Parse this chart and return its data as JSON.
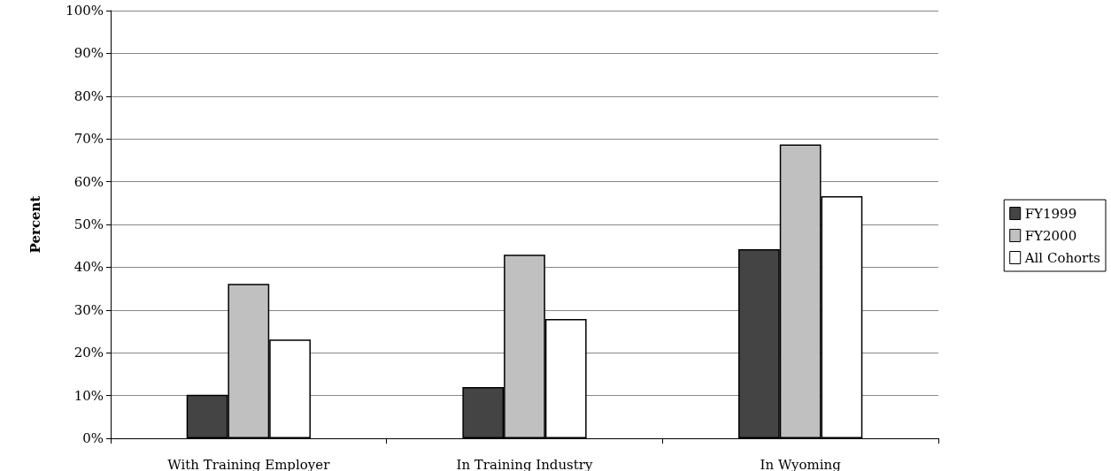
{
  "chart_data": {
    "type": "bar",
    "ylabel": "Percent",
    "categories": [
      "With Training Employer",
      "In Training Industry",
      "In Wyoming"
    ],
    "series": [
      {
        "name": "FY1999",
        "color": "#444444",
        "values": [
          10.2,
          12.0,
          44.2
        ]
      },
      {
        "name": "FY2000",
        "color": "#c0c0c0",
        "values": [
          36.1,
          42.9,
          68.7
        ]
      },
      {
        "name": "All Cohorts",
        "color": "#ffffff",
        "values": [
          23.1,
          27.9,
          56.6
        ]
      }
    ],
    "ylim": [
      0,
      100
    ],
    "yticks": [
      {
        "value": 0,
        "label": "0%"
      },
      {
        "value": 10,
        "label": "10%"
      },
      {
        "value": 20,
        "label": "20%"
      },
      {
        "value": 30,
        "label": "30%"
      },
      {
        "value": 40,
        "label": "40%"
      },
      {
        "value": 50,
        "label": "50%"
      },
      {
        "value": 60,
        "label": "60%"
      },
      {
        "value": 70,
        "label": "70%"
      },
      {
        "value": 80,
        "label": "80%"
      },
      {
        "value": 90,
        "label": "90%"
      },
      {
        "value": 100,
        "label": "100%"
      }
    ],
    "grid": "y",
    "legend": "right"
  }
}
